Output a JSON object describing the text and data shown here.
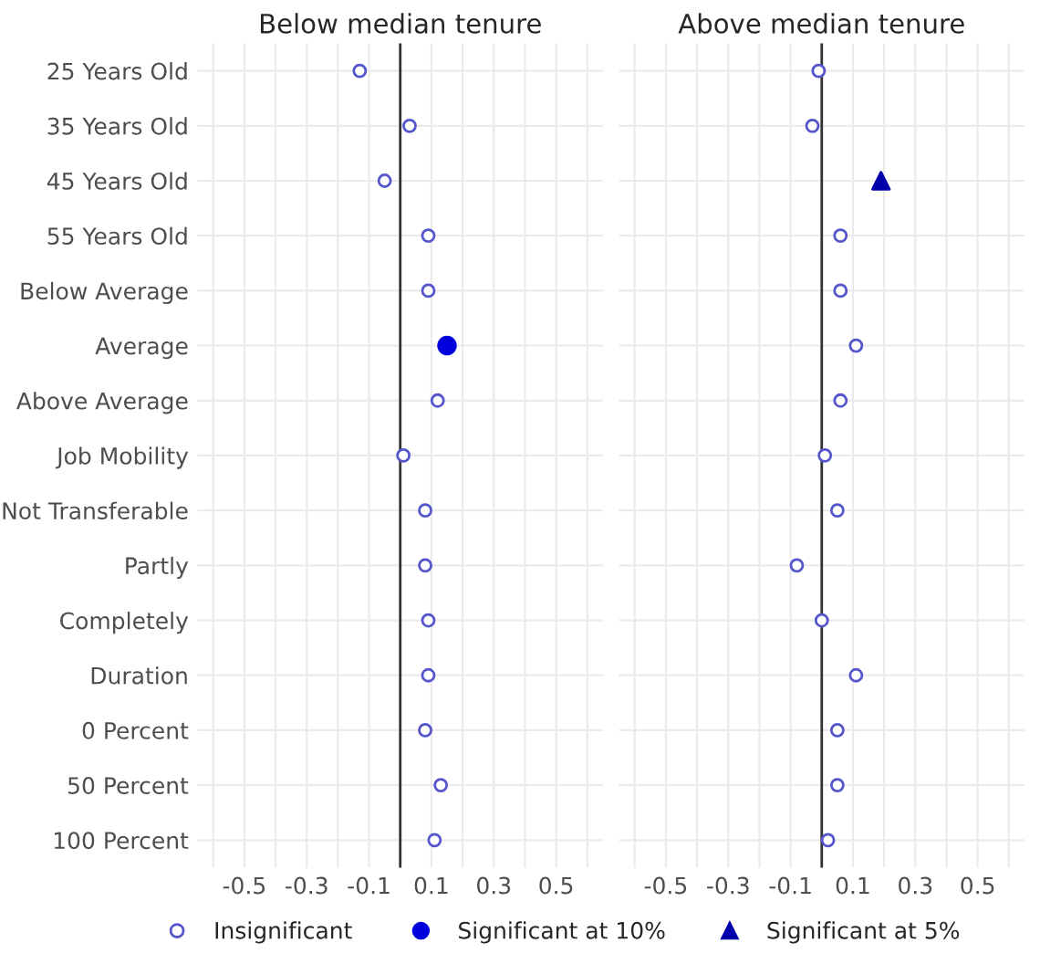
{
  "chart_data": [
    {
      "type": "scatter",
      "title": "Below median tenure",
      "orientation": "horizontal",
      "categories": [
        "25 Years Old",
        "35 Years Old",
        "45 Years Old",
        "55 Years Old",
        "Below Average",
        "Average",
        "Above Average",
        "Job Mobility",
        "Not Transferable",
        "Partly",
        "Completely",
        "Duration",
        "0 Percent",
        "50 Percent",
        "100 Percent"
      ],
      "series": [
        {
          "name": "Insignificant",
          "color": "#5555cc",
          "marker": "circle",
          "values": [
            -0.13,
            0.03,
            -0.05,
            0.09,
            0.09,
            null,
            0.12,
            0.01,
            0.08,
            0.08,
            0.09,
            0.09,
            0.08,
            0.13,
            0.11
          ]
        },
        {
          "name": "Significant at 10%",
          "color": "#0000dd",
          "marker": "circle",
          "values": [
            null,
            null,
            null,
            null,
            null,
            0.15,
            null,
            null,
            null,
            null,
            null,
            null,
            null,
            null,
            null
          ]
        }
      ],
      "xlim": [
        -0.65,
        0.65
      ],
      "xticks": [
        -0.5,
        {
          "value": -0.4,
          "label": null
        },
        -0.3,
        {
          "value": -0.2,
          "label": null
        },
        -0.1,
        {
          "value": 0,
          "label": null
        },
        0.1,
        {
          "value": 0.2,
          "label": null
        },
        0.3,
        {
          "value": 0.4,
          "label": null
        },
        0.5,
        {
          "value": 0.6,
          "label": null
        },
        {
          "value": -0.6,
          "label": null
        }
      ],
      "ref_lines": [
        {
          "axis": "x",
          "value": 0,
          "color": "#333333"
        }
      ],
      "grid": true,
      "legend": "bottom"
    },
    {
      "type": "scatter",
      "title": "Above median tenure",
      "orientation": "horizontal",
      "categories": [
        "25 Years Old",
        "35 Years Old",
        "45 Years Old",
        "55 Years Old",
        "Below Average",
        "Average",
        "Above Average",
        "Job Mobility",
        "Not Transferable",
        "Partly",
        "Completely",
        "Duration",
        "0 Percent",
        "50 Percent",
        "100 Percent"
      ],
      "series": [
        {
          "name": "Insignificant",
          "color": "#5555cc",
          "marker": "circle",
          "values": [
            -0.01,
            -0.03,
            null,
            0.06,
            0.06,
            0.11,
            0.06,
            0.01,
            0.05,
            -0.08,
            0.0,
            0.11,
            0.05,
            0.05,
            0.02
          ]
        },
        {
          "name": "Significant at 5%",
          "color": "#0000aa",
          "marker": "triangle",
          "values": [
            null,
            null,
            0.19,
            null,
            null,
            null,
            null,
            null,
            null,
            null,
            null,
            null,
            null,
            null,
            null
          ]
        }
      ],
      "xlim": [
        -0.65,
        0.65
      ],
      "xticks": [
        -0.5,
        {
          "value": -0.4,
          "label": null
        },
        -0.3,
        {
          "value": -0.2,
          "label": null
        },
        -0.1,
        {
          "value": 0,
          "label": null
        },
        0.1,
        {
          "value": 0.2,
          "label": null
        },
        0.3,
        {
          "value": 0.4,
          "label": null
        },
        0.5,
        {
          "value": 0.6,
          "label": null
        },
        {
          "value": -0.6,
          "label": null
        }
      ],
      "ref_lines": [
        {
          "axis": "x",
          "value": 0,
          "color": "#333333"
        }
      ],
      "grid": true,
      "legend": "bottom",
      "tick_labels": "x"
    }
  ]
}
